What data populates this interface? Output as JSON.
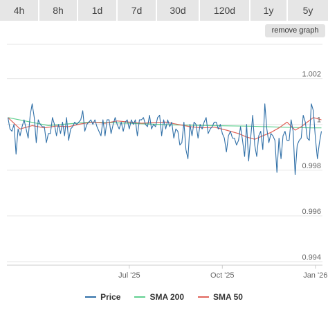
{
  "tabs": [
    {
      "label": "4h",
      "active": false
    },
    {
      "label": "8h",
      "active": false
    },
    {
      "label": "1d",
      "active": false
    },
    {
      "label": "7d",
      "active": false
    },
    {
      "label": "30d",
      "active": false
    },
    {
      "label": "120d",
      "active": false
    },
    {
      "label": "1y",
      "active": true
    },
    {
      "label": "5y",
      "active": false
    }
  ],
  "remove_graph_label": "remove graph",
  "legend": [
    {
      "name": "Price",
      "color": "#2f6fa7"
    },
    {
      "name": "SMA 200",
      "color": "#5fcf8f"
    },
    {
      "name": "SMA 50",
      "color": "#e0645a"
    }
  ],
  "chart_data": {
    "type": "line",
    "x_ticks": [
      "Jul '25",
      "Oct '25",
      "Jan '26"
    ],
    "x_tick_positions_days": [
      120,
      212,
      304
    ],
    "x_range_days": [
      -1,
      311
    ],
    "y_ticks": [
      "1.002",
      "1",
      "0.998",
      "0.996",
      "0.994"
    ],
    "y_tick_values": [
      1.002,
      1.0,
      0.998,
      0.996,
      0.994
    ],
    "ylim": [
      0.99385,
      1.0035
    ],
    "grid": true,
    "series": [
      {
        "name": "Price",
        "color": "#2f6fa7",
        "points": [
          [
            0,
            1.0003
          ],
          [
            2,
            0.9998
          ],
          [
            4,
            0.9997
          ],
          [
            6,
            1.0
          ],
          [
            8,
            0.9987
          ],
          [
            10,
            0.9998
          ],
          [
            12,
            0.9995
          ],
          [
            14,
            0.9999
          ],
          [
            16,
            1.0002
          ],
          [
            18,
            0.9998
          ],
          [
            20,
            0.9994
          ],
          [
            22,
            1.0004
          ],
          [
            24,
            1.0009
          ],
          [
            26,
            1.0003
          ],
          [
            28,
            0.9992
          ],
          [
            30,
            1.0002
          ],
          [
            32,
            1.0
          ],
          [
            34,
            0.9999
          ],
          [
            36,
            0.9999
          ],
          [
            38,
            0.9992
          ],
          [
            40,
            0.9996
          ],
          [
            42,
            0.9996
          ],
          [
            44,
            1.0003
          ],
          [
            46,
            1.0
          ],
          [
            48,
            0.9995
          ],
          [
            50,
            1.0
          ],
          [
            52,
            0.9996
          ],
          [
            54,
            1.0001
          ],
          [
            56,
            0.9995
          ],
          [
            58,
            1.0003
          ],
          [
            60,
            0.9993
          ],
          [
            62,
            0.9998
          ],
          [
            64,
            0.9999
          ],
          [
            66,
            1.0001
          ],
          [
            68,
            1.0
          ],
          [
            70,
            1.0001
          ],
          [
            72,
            1.0002
          ],
          [
            74,
            1.0006
          ],
          [
            76,
            0.9997
          ],
          [
            78,
            1.0
          ],
          [
            80,
            1.0001
          ],
          [
            82,
            1.0002
          ],
          [
            84,
            1.0
          ],
          [
            86,
            1.0002
          ],
          [
            88,
            0.9999
          ],
          [
            90,
            0.9997
          ],
          [
            92,
            0.9995
          ],
          [
            94,
            1.0002
          ],
          [
            96,
            0.9995
          ],
          [
            98,
            1.0002
          ],
          [
            100,
            1.0002
          ],
          [
            102,
            0.9996
          ],
          [
            104,
            1.0
          ],
          [
            106,
            1.0003
          ],
          [
            108,
            1.0
          ],
          [
            110,
            0.9998
          ],
          [
            112,
            1.0001
          ],
          [
            114,
            0.9997
          ],
          [
            116,
            1.0001
          ],
          [
            118,
            1.0002
          ],
          [
            120,
            0.9998
          ],
          [
            122,
            1.0002
          ],
          [
            124,
            1.0
          ],
          [
            126,
            1.0002
          ],
          [
            128,
            0.9995
          ],
          [
            130,
            1.0002
          ],
          [
            132,
            1.0002
          ],
          [
            134,
            1.0003
          ],
          [
            136,
            1.0
          ],
          [
            138,
            0.9999
          ],
          [
            140,
            1.0004
          ],
          [
            142,
            0.9998
          ],
          [
            144,
            1.0
          ],
          [
            146,
            0.9999
          ],
          [
            148,
            1.0003
          ],
          [
            150,
            1.0004
          ],
          [
            152,
            0.9995
          ],
          [
            154,
            1.0002
          ],
          [
            156,
            0.9998
          ],
          [
            158,
            1.0002
          ],
          [
            160,
            0.9999
          ],
          [
            162,
            1.0001
          ],
          [
            164,
            0.9994
          ],
          [
            166,
            0.9998
          ],
          [
            168,
            0.9997
          ],
          [
            170,
            0.9991
          ],
          [
            172,
            0.9992
          ],
          [
            174,
            1.0001
          ],
          [
            176,
            0.9989
          ],
          [
            178,
            0.9985
          ],
          [
            180,
            1.0
          ],
          [
            182,
            0.9995
          ],
          [
            184,
            1.0001
          ],
          [
            186,
            1.0
          ],
          [
            188,
            0.9994
          ],
          [
            190,
            1.0
          ],
          [
            192,
            0.9998
          ],
          [
            194,
            1.0001
          ],
          [
            196,
            1.0003
          ],
          [
            198,
            0.9996
          ],
          [
            200,
            0.9998
          ],
          [
            202,
            0.9999
          ],
          [
            204,
            1.0001
          ],
          [
            206,
            1.0001
          ],
          [
            208,
            0.9998
          ],
          [
            210,
            1.0
          ],
          [
            212,
            0.9996
          ],
          [
            214,
            0.9994
          ],
          [
            216,
            0.9988
          ],
          [
            218,
            0.9995
          ],
          [
            220,
            0.9997
          ],
          [
            222,
            0.9994
          ],
          [
            224,
            0.9994
          ],
          [
            226,
            0.9991
          ],
          [
            228,
            0.9993
          ],
          [
            230,
            0.9999
          ],
          [
            232,
            0.9993
          ],
          [
            234,
            0.9986
          ],
          [
            236,
            1.0
          ],
          [
            238,
            0.9984
          ],
          [
            240,
            0.9994
          ],
          [
            242,
            1.0004
          ],
          [
            244,
            0.9991
          ],
          [
            246,
            0.9986
          ],
          [
            248,
            0.9995
          ],
          [
            250,
            0.9997
          ],
          [
            252,
            0.9989
          ],
          [
            254,
            1.0009
          ],
          [
            256,
            0.9998
          ],
          [
            258,
            0.9992
          ],
          [
            260,
            0.9996
          ],
          [
            262,
            0.9995
          ],
          [
            264,
            0.9993
          ],
          [
            266,
            0.9979
          ],
          [
            268,
            0.9994
          ],
          [
            270,
            0.9985
          ],
          [
            272,
            0.9995
          ],
          [
            274,
            0.9997
          ],
          [
            276,
            0.9993
          ],
          [
            278,
            0.9993
          ],
          [
            280,
            1.0002
          ],
          [
            282,
            0.9997
          ],
          [
            284,
            0.9978
          ],
          [
            286,
            0.9991
          ],
          [
            288,
            0.9993
          ],
          [
            290,
            0.9994
          ],
          [
            292,
            1.0004
          ],
          [
            294,
            1.0001
          ],
          [
            296,
            0.9994
          ],
          [
            298,
            0.9993
          ],
          [
            300,
            1.0009
          ],
          [
            302,
            1.0006
          ],
          [
            304,
            0.9994
          ],
          [
            306,
            0.9985
          ],
          [
            308,
            0.9992
          ],
          [
            310,
            0.9997
          ]
        ]
      },
      {
        "name": "SMA 200",
        "color": "#5fcf8f",
        "points": [
          [
            0,
            1.0003
          ],
          [
            40,
            0.99995
          ],
          [
            80,
            1.0001
          ],
          [
            120,
            1.00005
          ],
          [
            160,
            0.99998
          ],
          [
            200,
            0.99995
          ],
          [
            240,
            0.99992
          ],
          [
            270,
            0.99988
          ],
          [
            300,
            0.99985
          ],
          [
            310,
            0.99985
          ]
        ]
      },
      {
        "name": "SMA 50",
        "color": "#e0645a",
        "points": [
          [
            0,
            1.0003
          ],
          [
            12,
            0.9998
          ],
          [
            24,
            0.99995
          ],
          [
            36,
            0.99985
          ],
          [
            48,
            0.99993
          ],
          [
            60,
            0.9999
          ],
          [
            72,
            1.00002
          ],
          [
            84,
            1.0001
          ],
          [
            96,
            1.00005
          ],
          [
            108,
            1.00015
          ],
          [
            120,
            1.0001
          ],
          [
            132,
            1.00005
          ],
          [
            144,
            1.00008
          ],
          [
            156,
            1.0001
          ],
          [
            168,
            1.0
          ],
          [
            180,
            0.9999
          ],
          [
            192,
            0.99985
          ],
          [
            204,
            0.99988
          ],
          [
            216,
            0.99975
          ],
          [
            228,
            0.9996
          ],
          [
            236,
            0.99945
          ],
          [
            244,
            0.99935
          ],
          [
            252,
            0.9995
          ],
          [
            260,
            0.99965
          ],
          [
            268,
            0.99985
          ],
          [
            276,
            1.0001
          ],
          [
            284,
            0.99975
          ],
          [
            290,
            0.9999
          ],
          [
            296,
            1.0001
          ],
          [
            302,
            1.0003
          ],
          [
            310,
            1.0002
          ]
        ]
      }
    ]
  }
}
